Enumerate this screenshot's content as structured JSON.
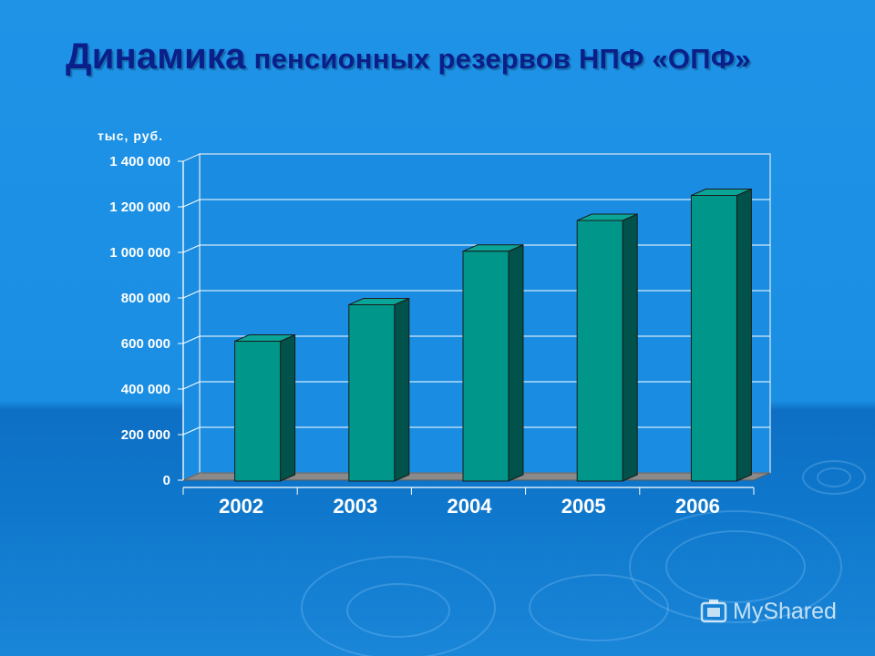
{
  "slide": {
    "title_part1": "Динамика",
    "title_part2": "пенсионных резервов  НПФ «ОПФ»"
  },
  "watermark": {
    "text": "MyShared",
    "icon": "myshared-logo-icon"
  },
  "colors": {
    "bar_front": "#00968a",
    "bar_side": "#00524a",
    "bar_top": "#0aa597",
    "plot_wall": "#1a8de3",
    "grid": "#ffffff",
    "floor": "#8a8a8a",
    "title": "#0a1f8a"
  },
  "chart_data": {
    "type": "bar",
    "ylabel": "тыс, руб.",
    "categories": [
      "2002",
      "2003",
      "2004",
      "2005",
      "2006"
    ],
    "values": [
      610000,
      770000,
      1005000,
      1140000,
      1250000
    ],
    "ylim": [
      0,
      1400000
    ],
    "yticks": [
      0,
      200000,
      400000,
      600000,
      800000,
      1000000,
      1200000,
      1400000
    ],
    "ytick_labels": [
      "0",
      "200 000",
      "400 000",
      "600 000",
      "800 000",
      "1 000 000",
      "1 200 000",
      "1 400 000"
    ],
    "grid": true,
    "legend": "none",
    "style": "3d-column"
  }
}
